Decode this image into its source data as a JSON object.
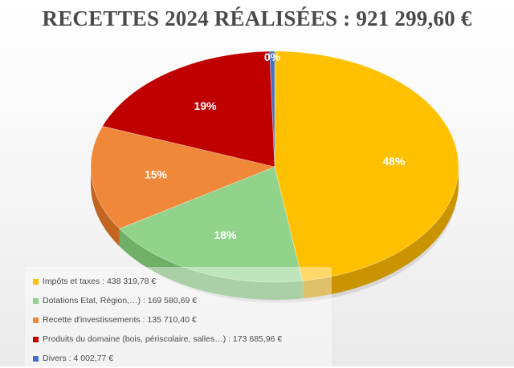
{
  "chart_data": {
    "type": "pie",
    "title": "RECETTES 2024 RÉALISÉES : 921 299,60 €",
    "slices": [
      {
        "label": "Impôts et taxes : 438 319,78 €",
        "value": 438319.78,
        "pct_label": "48%",
        "color": "#FFC000",
        "shade": "#C99400"
      },
      {
        "label": "Dotations Etat, Région,…) : 169 580,69 €",
        "value": 169580.69,
        "pct_label": "18%",
        "color": "#92D38C",
        "shade": "#6FAF68"
      },
      {
        "label": "Recette d'investissements : 135 710,40 €",
        "value": 135710.4,
        "pct_label": "15%",
        "color": "#F0883A",
        "shade": "#C26522"
      },
      {
        "label": "Produits du domaine (bois, périscolaire, salles…) : 173 685,96 €",
        "value": 173685.96,
        "pct_label": "19%",
        "color": "#C00000",
        "shade": "#8E0000"
      },
      {
        "label": "Divers : 4 002,77 €",
        "value": 4002.77,
        "pct_label": "0%",
        "color": "#4472C4",
        "shade": "#2F5597"
      }
    ],
    "legend": "bottom-left"
  }
}
